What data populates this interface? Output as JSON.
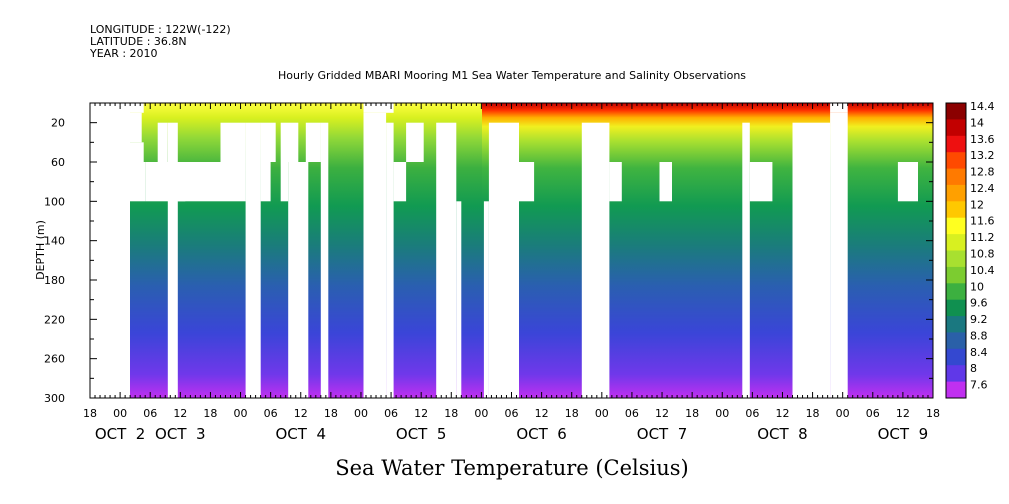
{
  "header": {
    "longitude": "LONGITUDE : 122W(-122)",
    "latitude": "LATITUDE : 36.8N",
    "year": "YEAR : 2010"
  },
  "chart_data": {
    "type": "heatmap",
    "title": "Hourly Gridded MBARI Mooring M1 Sea Water Temperature and Salinity Observations",
    "xlabel": "",
    "ylabel": "DEPTH (m)",
    "colorbar_label": "Sea Water Temperature (Celsius)",
    "y_range": [
      300,
      0
    ],
    "y_ticks": [
      20,
      60,
      100,
      140,
      180,
      220,
      260,
      300
    ],
    "x_range_hours": [
      0,
      168
    ],
    "x_hour_ticks": [
      {
        "h": 0,
        "label": "18"
      },
      {
        "h": 6,
        "label": "00"
      },
      {
        "h": 12,
        "label": "06"
      },
      {
        "h": 18,
        "label": "12"
      },
      {
        "h": 24,
        "label": "18"
      },
      {
        "h": 30,
        "label": "00"
      },
      {
        "h": 36,
        "label": "06"
      },
      {
        "h": 42,
        "label": "12"
      },
      {
        "h": 48,
        "label": "18"
      },
      {
        "h": 54,
        "label": "00"
      },
      {
        "h": 60,
        "label": "06"
      },
      {
        "h": 66,
        "label": "12"
      },
      {
        "h": 72,
        "label": "18"
      },
      {
        "h": 78,
        "label": "00"
      },
      {
        "h": 84,
        "label": "06"
      },
      {
        "h": 90,
        "label": "12"
      },
      {
        "h": 96,
        "label": "18"
      },
      {
        "h": 102,
        "label": "00"
      },
      {
        "h": 108,
        "label": "06"
      },
      {
        "h": 114,
        "label": "12"
      },
      {
        "h": 120,
        "label": "18"
      },
      {
        "h": 126,
        "label": "00"
      },
      {
        "h": 132,
        "label": "06"
      },
      {
        "h": 138,
        "label": "12"
      },
      {
        "h": 144,
        "label": "18"
      },
      {
        "h": 150,
        "label": "00"
      },
      {
        "h": 156,
        "label": "06"
      },
      {
        "h": 162,
        "label": "12"
      },
      {
        "h": 168,
        "label": "18"
      }
    ],
    "date_labels": [
      {
        "h": 6,
        "label": "OCT  2"
      },
      {
        "h": 18,
        "label": "OCT  3"
      },
      {
        "h": 42,
        "label": "OCT  4"
      },
      {
        "h": 66,
        "label": "OCT  5"
      },
      {
        "h": 90,
        "label": "OCT  6"
      },
      {
        "h": 114,
        "label": "OCT  7"
      },
      {
        "h": 138,
        "label": "OCT  8"
      },
      {
        "h": 162,
        "label": "OCT  9"
      }
    ],
    "colorbar": {
      "labels": [
        "14.4",
        "14",
        "13.6",
        "13.2",
        "12.8",
        "12.4",
        "12",
        "11.6",
        "11.2",
        "10.8",
        "10.4",
        "10",
        "9.6",
        "9.2",
        "8.8",
        "8.4",
        "8",
        "7.6"
      ],
      "colors": [
        "#8b0000",
        "#c20000",
        "#ee1010",
        "#ff4a00",
        "#ff7a00",
        "#ffa000",
        "#ffc800",
        "#ffff20",
        "#d8f020",
        "#a8e030",
        "#7ccc30",
        "#3cb040",
        "#109050",
        "#1a7880",
        "#2a60a8",
        "#3448d0",
        "#6038e8",
        "#c030f0"
      ]
    },
    "temperature_structure": {
      "surface_c": {
        "oct_2_to_6": 11.4,
        "oct_6_to_9": 14.2
      },
      "depth_20m_c": 11.0,
      "depth_100m_c": 10.0,
      "depth_140m_c": 9.6,
      "depth_200m_c": 9.0,
      "depth_260m_c": 8.3,
      "depth_300m_c": 7.8
    },
    "grid": false
  }
}
